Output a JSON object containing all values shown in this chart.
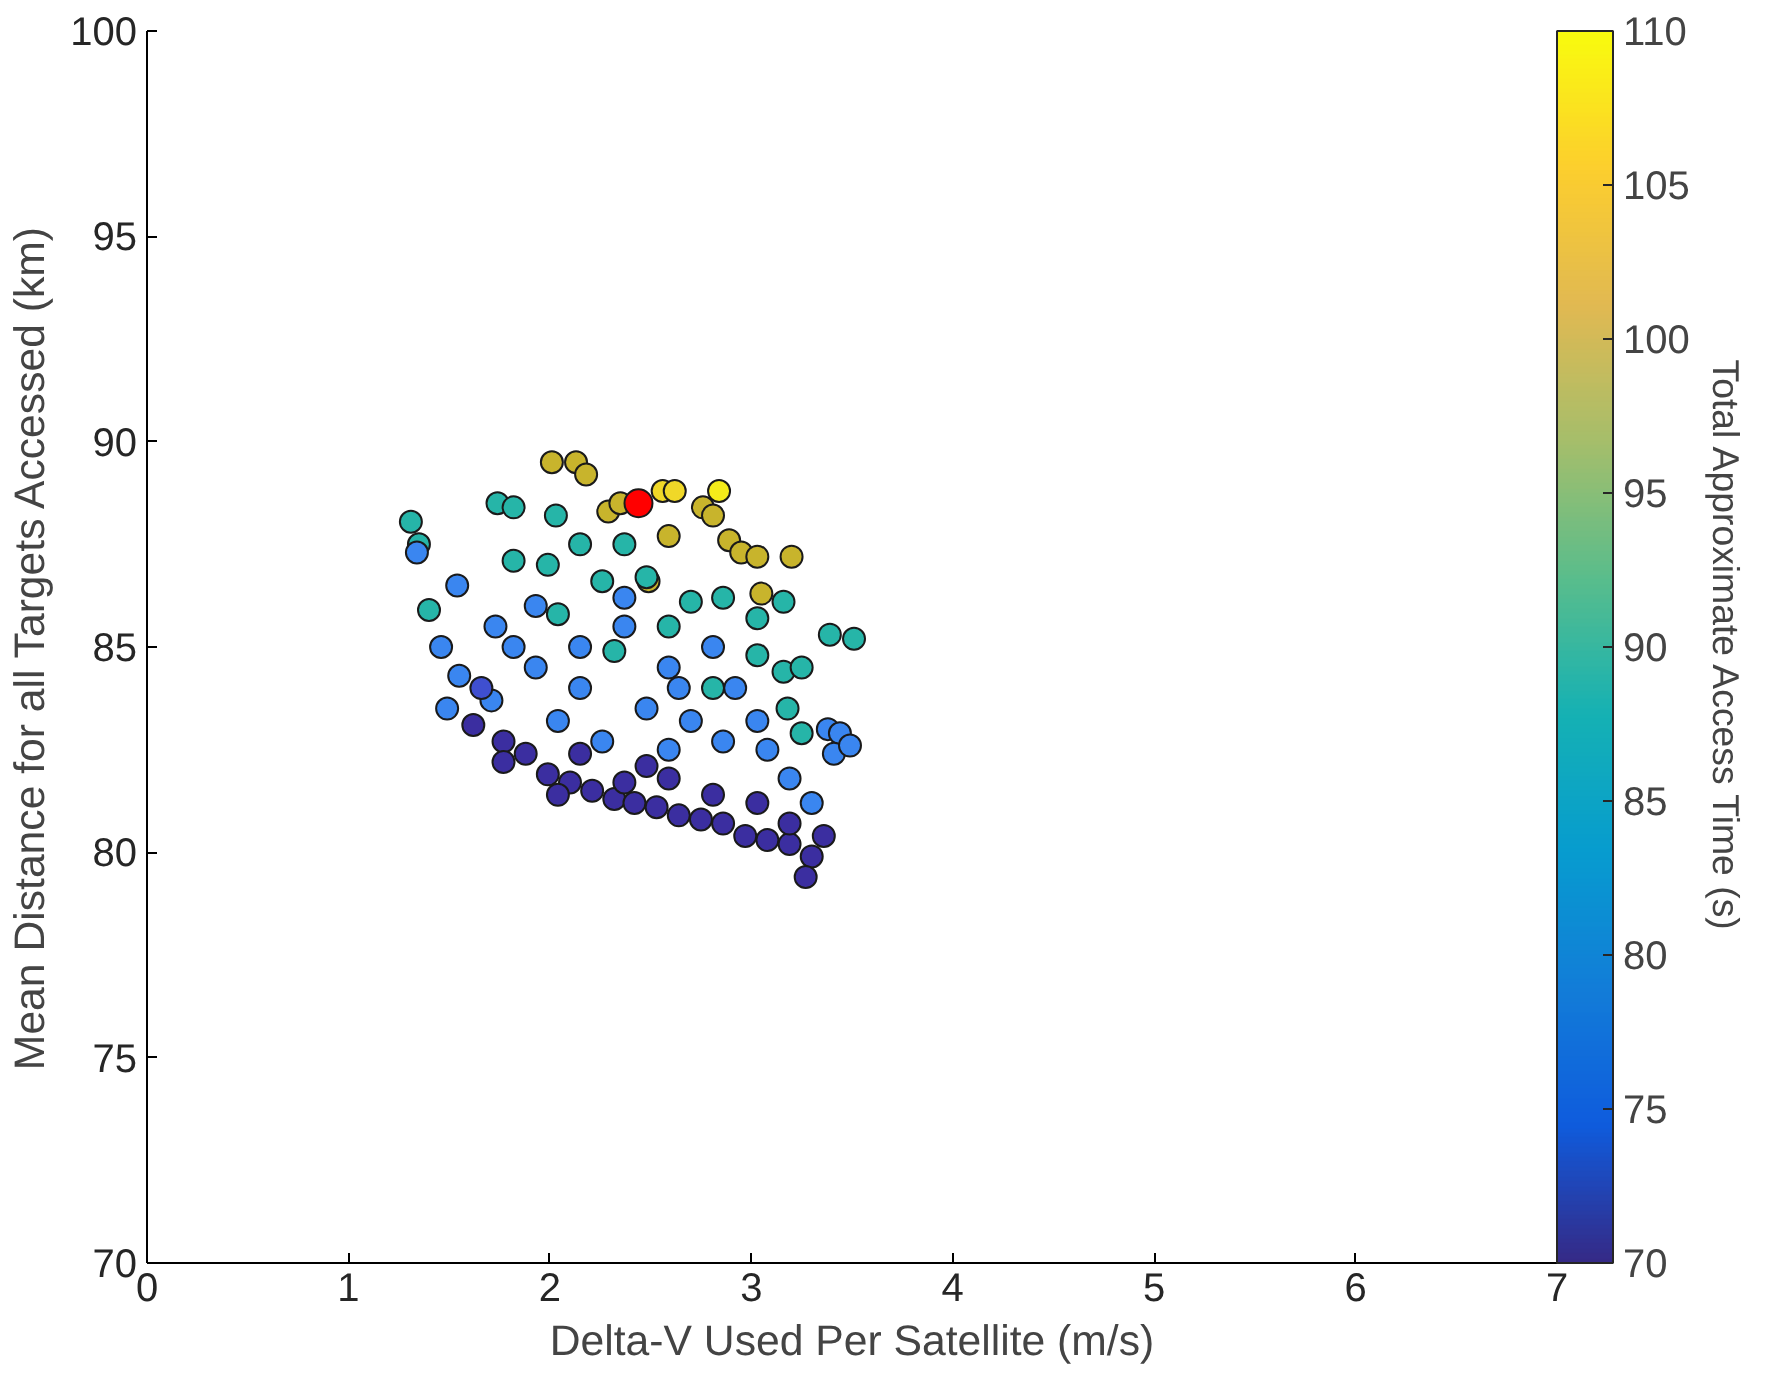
{
  "chart_data": {
    "type": "scatter",
    "xlabel": "Delta-V Used Per Satellite (m/s)",
    "ylabel": "Mean Distance for all Targets Accessed (km)",
    "clabel": "Total Approximate Access Time (s)",
    "xlim": [
      0,
      7
    ],
    "ylim": [
      70,
      100
    ],
    "xticks": [
      0,
      1,
      2,
      3,
      4,
      5,
      6,
      7
    ],
    "yticks": [
      70,
      75,
      80,
      85,
      90,
      95,
      100
    ],
    "clim": [
      70,
      110
    ],
    "cticks": [
      70,
      75,
      80,
      85,
      90,
      95,
      100,
      105,
      110
    ],
    "grid": false,
    "marker": "circle",
    "series": [
      {
        "x": [
          2.01,
          2.13,
          2.18,
          2.29,
          2.35,
          2.56,
          2.62,
          2.84,
          2.76,
          2.81,
          2.89,
          2.95,
          3.03,
          3.2,
          3.05,
          2.59,
          2.49,
          1.31,
          1.35,
          1.74,
          1.82,
          2.03,
          2.15,
          2.37,
          1.82,
          1.99,
          2.26,
          2.48,
          2.7,
          2.86,
          3.03,
          3.16,
          2.04,
          2.59,
          3.03,
          3.16,
          3.25,
          3.39,
          3.51,
          3.18,
          3.25,
          2.81,
          2.32,
          1.4,
          1.34,
          1.54,
          1.46,
          1.55,
          1.73,
          1.93,
          2.15,
          2.37,
          2.59,
          2.81,
          1.93,
          2.15,
          2.48,
          2.7,
          2.92,
          3.03,
          1.71,
          2.04,
          2.26,
          2.59,
          2.86,
          3.08,
          3.19,
          3.3,
          3.38,
          3.44,
          3.41,
          3.49,
          1.82,
          2.37,
          2.64,
          1.49,
          1.62,
          1.77,
          1.88,
          1.99,
          2.1,
          2.21,
          2.32,
          2.42,
          2.53,
          2.64,
          2.75,
          2.86,
          2.97,
          3.08,
          3.19,
          3.3,
          3.27,
          3.36,
          3.19,
          1.77,
          2.04,
          2.37,
          2.59,
          2.81,
          3.03,
          2.15,
          2.48,
          1.66
        ],
        "values": [
          89.5,
          89.5,
          89.2,
          88.3,
          88.5,
          88.8,
          88.8,
          88.8,
          88.4,
          88.2,
          87.6,
          87.3,
          87.2,
          87.2,
          86.3,
          87.7,
          86.6,
          88.05,
          87.5,
          88.5,
          88.4,
          88.2,
          87.5,
          87.5,
          87.1,
          87.0,
          86.6,
          86.7,
          86.1,
          86.2,
          85.7,
          86.1,
          85.8,
          85.5,
          84.8,
          84.4,
          84.5,
          85.3,
          85.2,
          83.5,
          82.9,
          84.0,
          84.9,
          85.9,
          87.3,
          86.5,
          85.0,
          84.3,
          85.5,
          86.0,
          85.0,
          85.5,
          84.5,
          85.0,
          84.5,
          84.0,
          83.5,
          83.2,
          84.0,
          83.2,
          83.7,
          83.2,
          82.7,
          82.5,
          82.7,
          82.5,
          81.8,
          81.2,
          83.0,
          82.9,
          82.4,
          82.6,
          85.0,
          86.2,
          84.0,
          83.5,
          83.1,
          82.7,
          82.4,
          81.9,
          81.7,
          81.5,
          81.3,
          81.2,
          81.1,
          80.9,
          80.8,
          80.7,
          80.4,
          80.3,
          80.2,
          79.9,
          79.4,
          80.4,
          80.7,
          82.2,
          81.4,
          81.7,
          81.8,
          81.4,
          81.2,
          82.4,
          82.1,
          84.0
        ],
        "colors": [
          "#c8b42c",
          "#c8b42c",
          "#c8b42c",
          "#c8b42c",
          "#c8b42c",
          "#f0d828",
          "#f0d828",
          "#f5ec1a",
          "#c8b42c",
          "#c8b42c",
          "#c8b42c",
          "#c8b42c",
          "#c8b42c",
          "#c8b42c",
          "#c8b42c",
          "#c8b42c",
          "#c8b42c",
          "#26b5a8",
          "#26b5a8",
          "#26b5a8",
          "#26b5a8",
          "#26b5a8",
          "#26b5a8",
          "#26b5a8",
          "#26b5a8",
          "#26b5a8",
          "#26b5a8",
          "#26b5a8",
          "#26b5a8",
          "#26b5a8",
          "#26b5a8",
          "#26b5a8",
          "#26b5a8",
          "#26b5a8",
          "#26b5a8",
          "#26b5a8",
          "#26b5a8",
          "#26b5a8",
          "#26b5a8",
          "#26b5a8",
          "#26b5a8",
          "#26b5a8",
          "#26b5a8",
          "#26b5a8",
          "#3a86f0",
          "#3a86f0",
          "#3a86f0",
          "#3a86f0",
          "#3a86f0",
          "#3a86f0",
          "#3a86f0",
          "#3a86f0",
          "#3a86f0",
          "#3a86f0",
          "#3a86f0",
          "#3a86f0",
          "#3a86f0",
          "#3a86f0",
          "#3a86f0",
          "#3a86f0",
          "#3a86f0",
          "#3a86f0",
          "#3a86f0",
          "#3a86f0",
          "#3a86f0",
          "#3a86f0",
          "#3a86f0",
          "#3a86f0",
          "#3a86f0",
          "#3a86f0",
          "#3a86f0",
          "#3a86f0",
          "#3a86f0",
          "#3a86f0",
          "#3a86f0",
          "#3a86f0",
          "#3b2ea0",
          "#3b2ea0",
          "#3b2ea0",
          "#3b2ea0",
          "#3b2ea0",
          "#3b2ea0",
          "#3b2ea0",
          "#3b2ea0",
          "#3b2ea0",
          "#3b2ea0",
          "#3b2ea0",
          "#3b2ea0",
          "#3b2ea0",
          "#3b2ea0",
          "#3b2ea0",
          "#3b2ea0",
          "#3b2ea0",
          "#3b2ea0",
          "#3b2ea0",
          "#3b2ea0",
          "#3b2ea0",
          "#3b2ea0",
          "#3b2ea0",
          "#3b2ea0",
          "#3b2ea0",
          "#3b2ea0",
          "#3b2ea0",
          "#3f4fd0"
        ]
      },
      {
        "type": "scatter",
        "color": "#ff0000",
        "x": [
          2.44
        ],
        "values": [
          88.5
        ]
      }
    ]
  }
}
